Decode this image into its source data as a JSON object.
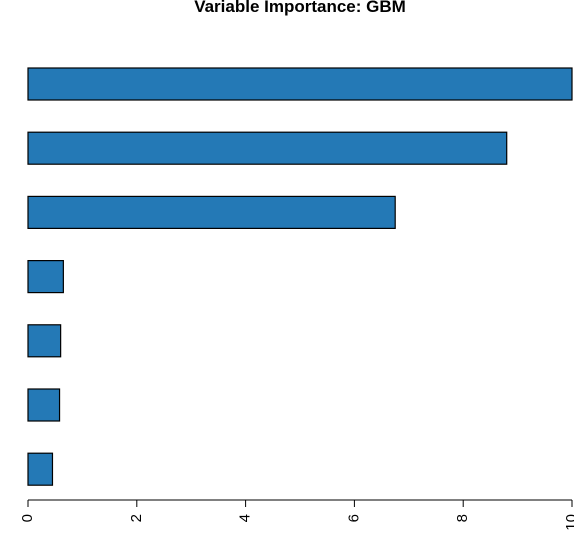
{
  "chart_data": {
    "type": "bar",
    "orientation": "horizontal",
    "title": "Variable Importance: GBM",
    "xlabel": "",
    "ylabel": "",
    "categories": [
      "",
      "",
      "",
      "",
      "",
      "",
      ""
    ],
    "values": [
      10.0,
      8.8,
      6.75,
      0.65,
      0.6,
      0.58,
      0.45
    ],
    "xlim": [
      0,
      10
    ],
    "xticks": [
      0,
      2,
      4,
      6,
      8,
      10
    ],
    "xtick_labels": [
      "0",
      "2",
      "4",
      "6",
      "8",
      "10"
    ],
    "grid": false,
    "legend": "none",
    "bar_color": "#2479b6",
    "bar_outline_color": "#000000"
  }
}
